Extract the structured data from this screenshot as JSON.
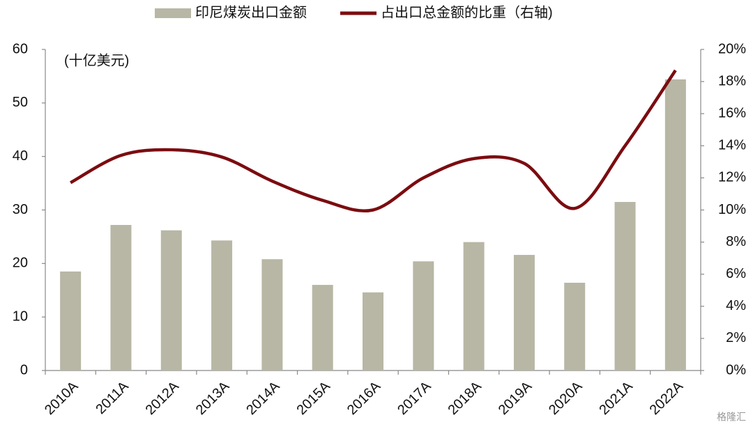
{
  "chart_data": {
    "type": "bar-line",
    "annotation": "(十亿美元)",
    "watermark": "格隆汇",
    "categories": [
      "2010A",
      "2011A",
      "2012A",
      "2013A",
      "2014A",
      "2015A",
      "2016A",
      "2017A",
      "2018A",
      "2019A",
      "2020A",
      "2021A",
      "2022A"
    ],
    "series": [
      {
        "name": "印尼煤炭出口金额",
        "type": "bar",
        "color": "#b8b7a5",
        "values": [
          18.5,
          27.2,
          26.2,
          24.3,
          20.8,
          16.0,
          14.6,
          20.4,
          24.0,
          21.6,
          16.4,
          31.5,
          54.4
        ]
      },
      {
        "name": "占出口总金额的比重（右轴)",
        "type": "line",
        "axis": "y2",
        "color": "#7b0c10",
        "values": [
          11.7,
          13.4,
          13.75,
          13.3,
          11.8,
          10.6,
          10.0,
          12.0,
          13.2,
          12.9,
          10.1,
          14.0,
          18.7
        ]
      }
    ],
    "ylim": [
      0,
      60
    ],
    "yticks": [
      0,
      10,
      20,
      30,
      40,
      50,
      60
    ],
    "y2lim": [
      0,
      20
    ],
    "y2ticks": [
      {
        "value": 0,
        "label": "0%"
      },
      {
        "value": 2,
        "label": "2%"
      },
      {
        "value": 4,
        "label": "4%"
      },
      {
        "value": 6,
        "label": "6%"
      },
      {
        "value": 8,
        "label": "8%"
      },
      {
        "value": 10,
        "label": "10%"
      },
      {
        "value": 12,
        "label": "12%"
      },
      {
        "value": 14,
        "label": "14%"
      },
      {
        "value": 16,
        "label": "16%"
      },
      {
        "value": 18,
        "label": "18%"
      },
      {
        "value": 20,
        "label": "20%"
      }
    ],
    "grid": false,
    "legend": "top"
  }
}
